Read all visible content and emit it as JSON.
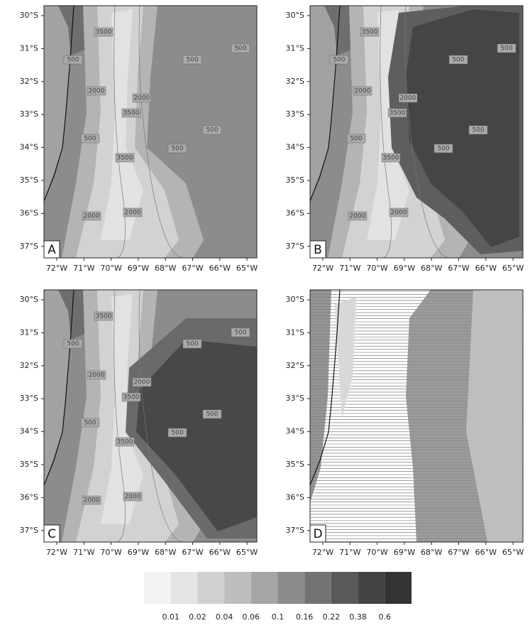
{
  "map": {
    "lat_ticks": [
      "30°S",
      "31°S",
      "32°S",
      "33°S",
      "34°S",
      "35°S",
      "36°S",
      "37°S"
    ],
    "lon_ticks": [
      "72°W",
      "71°W",
      "70°W",
      "69°W",
      "68°W",
      "67°W",
      "66°W",
      "65°W"
    ],
    "panels": [
      {
        "label": "A",
        "contour_labels": [
          "3500",
          "500",
          "500",
          "500",
          "2000",
          "2000",
          "3500",
          "500",
          "500",
          "500",
          "3500",
          "2000",
          "2000"
        ]
      },
      {
        "label": "B",
        "contour_labels": [
          "3500",
          "500",
          "500",
          "500",
          "2000",
          "2000",
          "3500",
          "500",
          "500",
          "500",
          "3500",
          "2000",
          "2000"
        ]
      },
      {
        "label": "C",
        "contour_labels": [
          "3500",
          "500",
          "500",
          "500",
          "2000",
          "2000",
          "3500",
          "500",
          "500",
          "500",
          "3500",
          "2000",
          "2000"
        ]
      },
      {
        "label": "D",
        "contour_labels": []
      }
    ],
    "colorbar": {
      "labels": [
        0.01,
        0.02,
        0.04,
        0.06,
        0.1,
        0.16,
        0.22,
        0.38,
        0.6
      ]
    }
  }
}
